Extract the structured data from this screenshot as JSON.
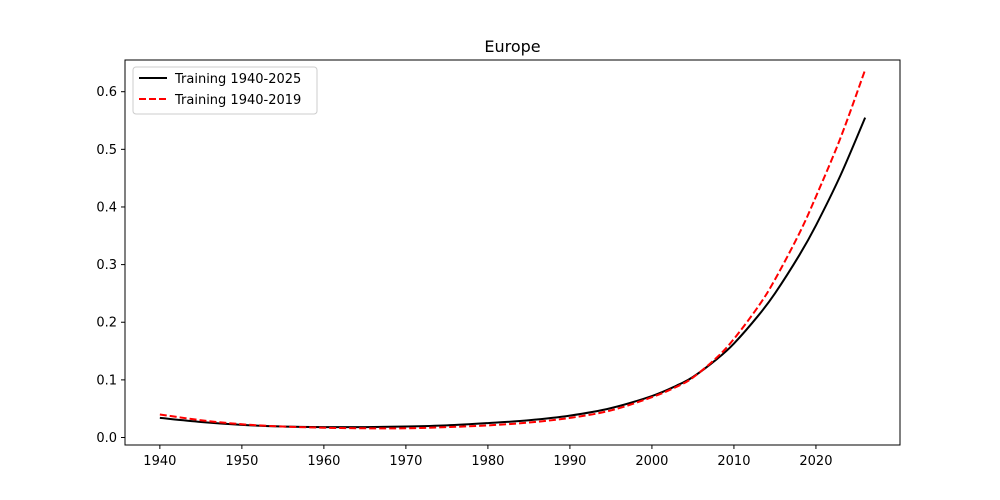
{
  "chart_data": {
    "type": "line",
    "title": "Europe",
    "xlabel": "",
    "ylabel": "",
    "xlim": [
      1935.75,
      2030.25
    ],
    "ylim": [
      -0.013,
      0.655
    ],
    "x_ticks": [
      1940,
      1950,
      1960,
      1970,
      1980,
      1990,
      2000,
      2010,
      2020
    ],
    "y_ticks": [
      0.0,
      0.1,
      0.2,
      0.3,
      0.4,
      0.5,
      0.6
    ],
    "x_tick_labels": [
      "1940",
      "1950",
      "1960",
      "1970",
      "1980",
      "1990",
      "2000",
      "2010",
      "2020"
    ],
    "y_tick_labels": [
      "0.0",
      "0.1",
      "0.2",
      "0.3",
      "0.4",
      "0.5",
      "0.6"
    ],
    "grid": false,
    "legend_position": "top-left",
    "series": [
      {
        "name": "Training 1940-2025",
        "color": "#000000",
        "dash": "solid",
        "x": [
          1940,
          1945,
          1950,
          1955,
          1960,
          1965,
          1970,
          1975,
          1980,
          1985,
          1990,
          1995,
          2000,
          2003,
          2005,
          2008,
          2010,
          2013,
          2015,
          2018,
          2020,
          2023,
          2026
        ],
        "y": [
          0.034,
          0.027,
          0.022,
          0.019,
          0.018,
          0.018,
          0.019,
          0.021,
          0.025,
          0.03,
          0.038,
          0.051,
          0.072,
          0.09,
          0.105,
          0.137,
          0.163,
          0.212,
          0.25,
          0.317,
          0.368,
          0.455,
          0.555
        ]
      },
      {
        "name": "Training 1940-2019",
        "color": "#ff0000",
        "dash": "dashed",
        "x": [
          1940,
          1945,
          1950,
          1955,
          1960,
          1965,
          1970,
          1975,
          1980,
          1985,
          1990,
          1995,
          2000,
          2003,
          2005,
          2008,
          2010,
          2013,
          2015,
          2018,
          2020,
          2023,
          2026
        ],
        "y": [
          0.04,
          0.03,
          0.023,
          0.019,
          0.017,
          0.016,
          0.016,
          0.018,
          0.021,
          0.026,
          0.034,
          0.047,
          0.07,
          0.088,
          0.104,
          0.14,
          0.171,
          0.228,
          0.274,
          0.355,
          0.418,
          0.52,
          0.638
        ]
      }
    ]
  }
}
